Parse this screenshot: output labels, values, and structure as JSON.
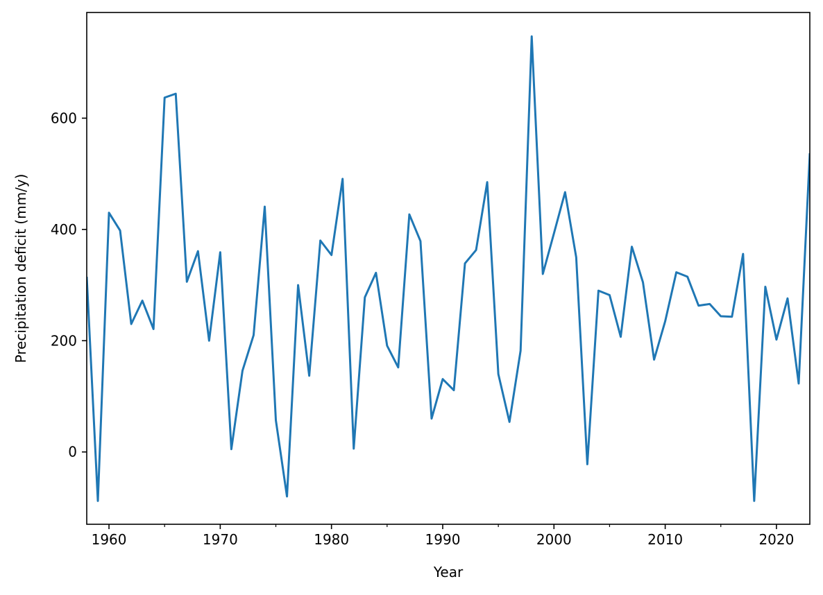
{
  "chart_data": {
    "type": "line",
    "title": "",
    "xlabel": "Year",
    "ylabel": "Precipitation deficit (mm/y)",
    "xlim": [
      1958,
      2023
    ],
    "ylim": [
      -130,
      790
    ],
    "xticks": [
      1960,
      1970,
      1980,
      1990,
      2000,
      2010,
      2020
    ],
    "xminor_ticks": [
      1965,
      1975,
      1985,
      1995,
      2005,
      2015
    ],
    "yticks": [
      0,
      200,
      400,
      600
    ],
    "grid": false,
    "legend": "none",
    "series": [
      {
        "color": "#1f77b4",
        "x": [
          1958,
          1959,
          1960,
          1961,
          1962,
          1963,
          1964,
          1965,
          1966,
          1967,
          1968,
          1969,
          1970,
          1971,
          1972,
          1973,
          1974,
          1975,
          1976,
          1977,
          1978,
          1979,
          1980,
          1981,
          1982,
          1983,
          1984,
          1985,
          1986,
          1987,
          1988,
          1989,
          1990,
          1991,
          1992,
          1993,
          1994,
          1995,
          1996,
          1997,
          1998,
          1999,
          2000,
          2001,
          2002,
          2003,
          2004,
          2005,
          2006,
          2007,
          2008,
          2009,
          2010,
          2011,
          2012,
          2013,
          2014,
          2015,
          2016,
          2017,
          2018,
          2019,
          2020,
          2021,
          2022,
          2023
        ],
        "values": [
          315,
          -88,
          430,
          398,
          230,
          272,
          221,
          637,
          644,
          306,
          361,
          200,
          359,
          5,
          146,
          210,
          441,
          57,
          -80,
          300,
          137,
          380,
          354,
          491,
          6,
          278,
          322,
          191,
          152,
          427,
          379,
          60,
          131,
          111,
          339,
          363,
          485,
          140,
          54,
          182,
          747,
          320,
          393,
          467,
          350,
          -22,
          290,
          282,
          207,
          369,
          305,
          166,
          235,
          323,
          315,
          263,
          266,
          244,
          243,
          356,
          -88,
          297,
          202,
          276,
          123,
          537
        ]
      }
    ]
  }
}
